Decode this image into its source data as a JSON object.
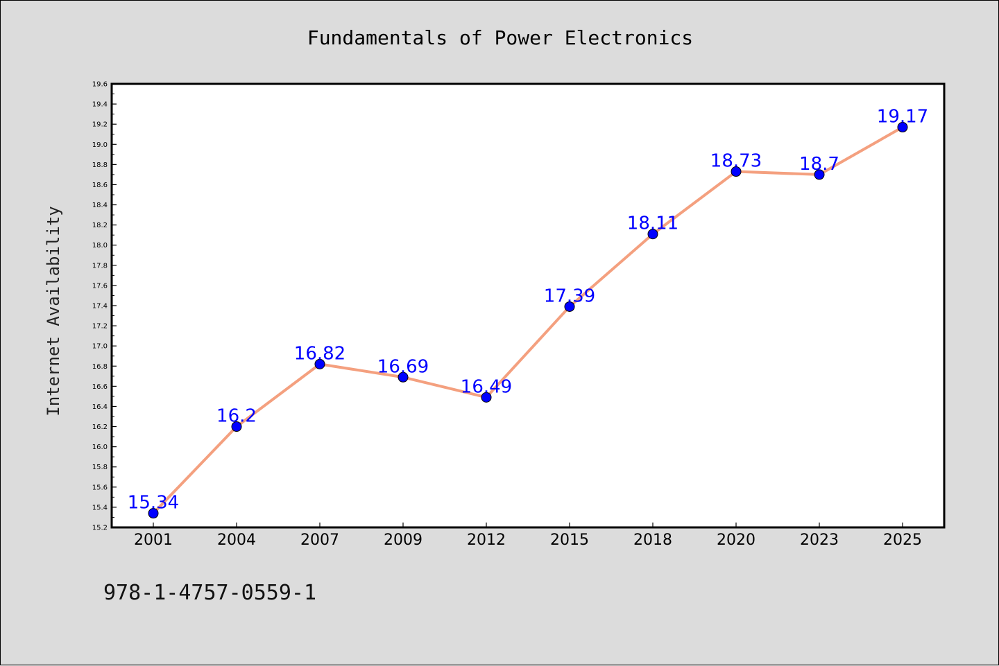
{
  "figure": {
    "footer_text": "978-1-4757-0559-1"
  },
  "chart_data": {
    "type": "line",
    "title": "Fundamentals of Power Electronics",
    "xlabel": "",
    "ylabel": "Internet Availability",
    "categories": [
      "2001",
      "2004",
      "2007",
      "2009",
      "2012",
      "2015",
      "2018",
      "2020",
      "2023",
      "2025"
    ],
    "series": [
      {
        "values": [
          15.34,
          16.2,
          16.82,
          16.69,
          16.49,
          17.39,
          18.11,
          18.73,
          18.7,
          19.17
        ],
        "data_labels": [
          "15.34",
          "16.2",
          "16.82",
          "16.69",
          "16.49",
          "17.39",
          "18.11",
          "18.73",
          "18.7",
          "19.17"
        ],
        "line_color": "#f4a07f",
        "marker_color": "#0000ff",
        "label_color": "#0000ff"
      }
    ],
    "ylim": [
      15.2,
      19.6
    ],
    "yticks": [
      "15.2",
      "15.4",
      "15.6",
      "15.8",
      "16.0",
      "16.2",
      "16.4",
      "16.6",
      "16.8",
      "17.0",
      "17.2",
      "17.4",
      "17.6",
      "17.8",
      "18.0",
      "18.2",
      "18.4",
      "18.6",
      "18.8",
      "19.0",
      "19.2",
      "19.4",
      "19.6"
    ],
    "grid": false,
    "legend": "none",
    "colors": {
      "background": "#dcdcdc",
      "plot_area": "#ffffff",
      "axes": "#000000"
    }
  }
}
